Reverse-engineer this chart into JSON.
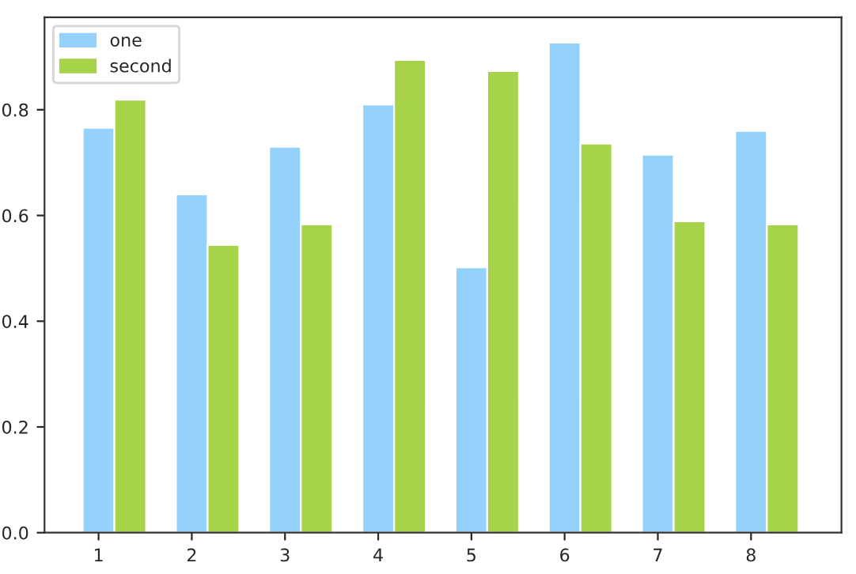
{
  "chart_data": {
    "type": "bar",
    "categories": [
      "1",
      "2",
      "3",
      "4",
      "5",
      "6",
      "7",
      "8"
    ],
    "series": [
      {
        "name": "one",
        "color": "#94d2fc",
        "values": [
          0.766,
          0.64,
          0.73,
          0.81,
          0.502,
          0.927,
          0.715,
          0.76
        ]
      },
      {
        "name": "second",
        "color": "#a6d34a",
        "values": [
          0.819,
          0.544,
          0.583,
          0.894,
          0.873,
          0.736,
          0.589,
          0.583
        ]
      }
    ],
    "ylim": [
      0,
      0.975
    ],
    "yticks": [
      {
        "value": 0,
        "label": "0.0"
      },
      {
        "value": 0.2,
        "label": "0.2"
      },
      {
        "value": 0.4,
        "label": "0.4"
      },
      {
        "value": 0.6,
        "label": "0.6"
      },
      {
        "value": 0.8,
        "label": "0.8"
      }
    ],
    "grid": false,
    "legend": "top left"
  }
}
